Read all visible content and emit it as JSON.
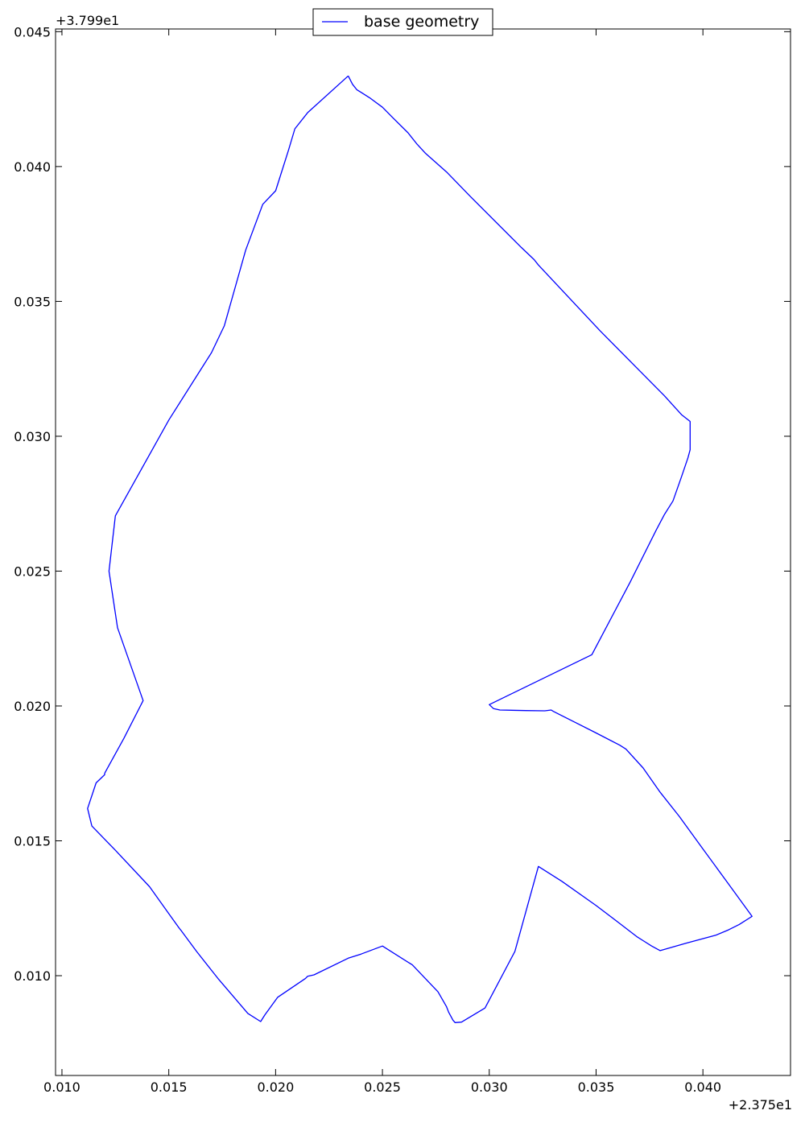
{
  "chart_data": {
    "type": "line",
    "title": "",
    "xlabel": "",
    "ylabel": "",
    "x_offset_label": "+2.375e1",
    "y_offset_label": "+3.799e1",
    "xlim": [
      0.0097,
      0.0441
    ],
    "ylim": [
      0.0063,
      0.0451
    ],
    "xticks": [
      0.01,
      0.015,
      0.02,
      0.025,
      0.03,
      0.035,
      0.04
    ],
    "xtick_labels": [
      "0.010",
      "0.015",
      "0.020",
      "0.025",
      "0.030",
      "0.035",
      "0.040"
    ],
    "yticks": [
      0.01,
      0.015,
      0.02,
      0.025,
      0.03,
      0.035,
      0.04,
      0.045
    ],
    "ytick_labels": [
      "0.010",
      "0.015",
      "0.020",
      "0.025",
      "0.030",
      "0.035",
      "0.040",
      "0.045"
    ],
    "grid": false,
    "legend_position": "top-center",
    "series": [
      {
        "name": "base geometry",
        "color": "#0000ff",
        "x": [
          0.0234,
          0.0236,
          0.0238,
          0.024,
          0.0244,
          0.025,
          0.0255,
          0.0262,
          0.0266,
          0.027,
          0.028,
          0.0291,
          0.0315,
          0.0321,
          0.0323,
          0.0333,
          0.0352,
          0.0382,
          0.039,
          0.0394,
          0.0394,
          0.0394,
          0.0393,
          0.039,
          0.0386,
          0.0382,
          0.0378,
          0.0366,
          0.0348,
          0.03,
          0.0302,
          0.0305,
          0.0317,
          0.0326,
          0.0329,
          0.033,
          0.034,
          0.035,
          0.0361,
          0.0364,
          0.0372,
          0.038,
          0.0389,
          0.04,
          0.0412,
          0.0423,
          0.0422,
          0.0417,
          0.0412,
          0.0406,
          0.0392,
          0.038,
          0.0376,
          0.0372,
          0.0369,
          0.036,
          0.035,
          0.0334,
          0.0323,
          0.0312,
          0.0298,
          0.0287,
          0.0284,
          0.0283,
          0.0282,
          0.0281,
          0.028,
          0.0276,
          0.0264,
          0.025,
          0.024,
          0.0234,
          0.0218,
          0.0215,
          0.0214,
          0.0201,
          0.0195,
          0.0193,
          0.0187,
          0.0173,
          0.0163,
          0.0156,
          0.0155,
          0.015,
          0.0141,
          0.0125,
          0.0114,
          0.0112,
          0.0116,
          0.012,
          0.012,
          0.0121,
          0.0129,
          0.0138,
          0.0126,
          0.0122,
          0.0125,
          0.015,
          0.017,
          0.0176,
          0.0186,
          0.0194,
          0.02,
          0.0206,
          0.0209,
          0.0215,
          0.0234
        ],
        "y": [
          0.04336,
          0.04305,
          0.04285,
          0.04275,
          0.04255,
          0.0422,
          0.0418,
          0.04125,
          0.04085,
          0.0405,
          0.0398,
          0.0389,
          0.037,
          0.03655,
          0.03635,
          0.0355,
          0.0339,
          0.0315,
          0.0308,
          0.03055,
          0.03,
          0.0295,
          0.0292,
          0.0285,
          0.0276,
          0.0271,
          0.0265,
          0.0246,
          0.0219,
          0.02005,
          0.0199,
          0.01985,
          0.01983,
          0.01982,
          0.01985,
          0.0198,
          0.0194,
          0.019,
          0.01855,
          0.0184,
          0.0177,
          0.0168,
          0.0159,
          0.0147,
          0.0134,
          0.0122,
          0.01215,
          0.0119,
          0.0117,
          0.0115,
          0.0112,
          0.01093,
          0.0111,
          0.0113,
          0.01145,
          0.012,
          0.0126,
          0.0135,
          0.01405,
          0.0109,
          0.0088,
          0.00828,
          0.00826,
          0.00835,
          0.0085,
          0.00865,
          0.00885,
          0.0094,
          0.0104,
          0.0111,
          0.0108,
          0.01065,
          0.01003,
          0.00998,
          0.0099,
          0.0092,
          0.00855,
          0.0083,
          0.0086,
          0.0099,
          0.0109,
          0.01165,
          0.01175,
          0.0123,
          0.0133,
          0.01465,
          0.01555,
          0.0162,
          0.01715,
          0.01745,
          0.0175,
          0.01765,
          0.0188,
          0.0202,
          0.0229,
          0.025,
          0.02705,
          0.0306,
          0.0331,
          0.0341,
          0.0369,
          0.0386,
          0.0391,
          0.0406,
          0.0414,
          0.042,
          0.04336
        ]
      }
    ]
  }
}
